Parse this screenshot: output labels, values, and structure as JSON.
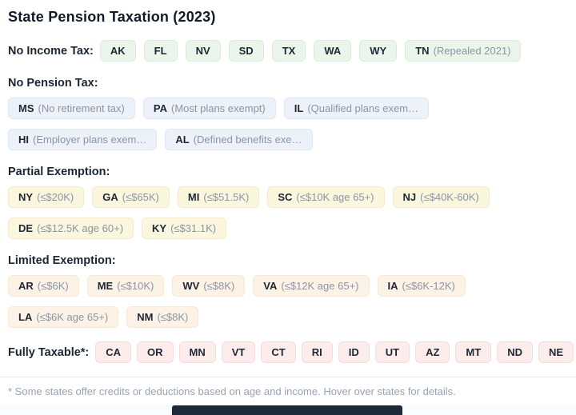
{
  "title": "State Pension Taxation (2023)",
  "sections": [
    {
      "id": "no-income-tax",
      "label": "No Income Tax:",
      "inline": true,
      "color": "green",
      "badges": [
        {
          "code": "AK"
        },
        {
          "code": "FL"
        },
        {
          "code": "NV"
        },
        {
          "code": "SD"
        },
        {
          "code": "TX"
        },
        {
          "code": "WA"
        },
        {
          "code": "WY"
        },
        {
          "code": "TN",
          "note": "(Repealed 2021)"
        }
      ]
    },
    {
      "id": "no-pension-tax",
      "label": "No Pension Tax:",
      "inline": false,
      "color": "blue",
      "badges": [
        {
          "code": "MS",
          "note": "(No retirement tax)"
        },
        {
          "code": "PA",
          "note": "(Most plans exempt)"
        },
        {
          "code": "IL",
          "note": "(Qualified plans exem…"
        },
        {
          "code": "HI",
          "note": "(Employer plans exem…"
        },
        {
          "code": "AL",
          "note": "(Defined benefits exe…"
        }
      ]
    },
    {
      "id": "partial-exemption",
      "label": "Partial Exemption:",
      "inline": false,
      "color": "yellow",
      "badges": [
        {
          "code": "NY",
          "note": "(≤$20K)"
        },
        {
          "code": "GA",
          "note": "(≤$65K)"
        },
        {
          "code": "MI",
          "note": "(≤$51.5K)"
        },
        {
          "code": "SC",
          "note": "(≤$10K age 65+)"
        },
        {
          "code": "NJ",
          "note": "(≤$40K-60K)"
        },
        {
          "code": "DE",
          "note": "(≤$12.5K age 60+)"
        },
        {
          "code": "KY",
          "note": "(≤$31.1K)"
        }
      ]
    },
    {
      "id": "limited-exemption",
      "label": "Limited Exemption:",
      "inline": false,
      "color": "orange",
      "badges": [
        {
          "code": "AR",
          "note": "(≤$6K)"
        },
        {
          "code": "ME",
          "note": "(≤$10K)"
        },
        {
          "code": "WV",
          "note": "(≤$8K)"
        },
        {
          "code": "VA",
          "note": "(≤$12K age 65+)"
        },
        {
          "code": "IA",
          "note": "(≤$6K-12K)"
        },
        {
          "code": "LA",
          "note": "(≤$6K age 65+)"
        },
        {
          "code": "NM",
          "note": "(≤$8K)"
        }
      ]
    },
    {
      "id": "fully-taxable",
      "label": "Fully Taxable*:",
      "inline": true,
      "color": "red",
      "badges": [
        {
          "code": "CA"
        },
        {
          "code": "OR"
        },
        {
          "code": "MN"
        },
        {
          "code": "VT"
        },
        {
          "code": "CT"
        },
        {
          "code": "RI"
        },
        {
          "code": "ID"
        },
        {
          "code": "UT"
        },
        {
          "code": "AZ"
        },
        {
          "code": "MT"
        },
        {
          "code": "ND"
        },
        {
          "code": "NE"
        }
      ]
    }
  ],
  "footnote": "* Some states offer credits or deductions based on age and income. Hover over states for details.",
  "colors": {
    "green": {
      "bg": "#eaf6ec",
      "border": "#dceadf"
    },
    "blue": {
      "bg": "#edf1fa",
      "border": "#dfe6f4"
    },
    "yellow": {
      "bg": "#fbf6de",
      "border": "#f1ecd0"
    },
    "orange": {
      "bg": "#fdf2e6",
      "border": "#f6e9d7"
    },
    "red": {
      "bg": "#fdecec",
      "border": "#f7dcdc"
    },
    "code_text": "#1f2733",
    "note_text": "#8b95a3",
    "dock_bar": "#1d2936"
  }
}
